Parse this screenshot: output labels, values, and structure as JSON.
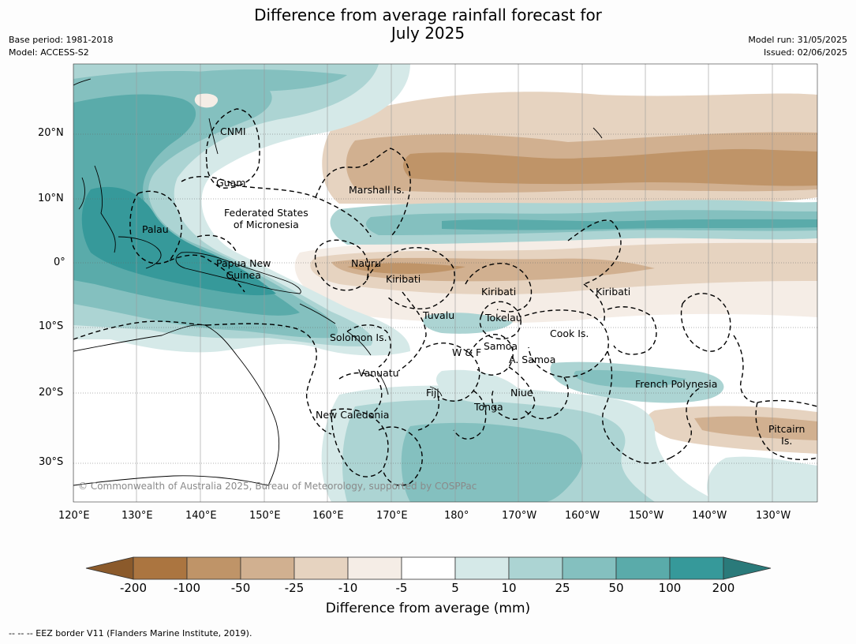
{
  "title_line1": "Difference from average rainfall forecast for",
  "title_line2": "July 2025",
  "meta_left": {
    "base_period": "Base period: 1981-2018",
    "model": "Model: ACCESS-S2"
  },
  "meta_right": {
    "model_run": "Model run: 31/05/2025",
    "issued": "Issued: 02/06/2025"
  },
  "lon_ticks": [
    "120°E",
    "130°E",
    "140°E",
    "150°E",
    "160°E",
    "170°E",
    "180°",
    "170°W",
    "160°W",
    "150°W",
    "140°W",
    "130°W"
  ],
  "lat_ticks": [
    "20°N",
    "10°N",
    "0°",
    "10°S",
    "20°S",
    "30°S"
  ],
  "places": [
    {
      "name": "CNMI"
    },
    {
      "name": "Guam"
    },
    {
      "name": "Marshall Is."
    },
    {
      "name": "Federated States\nof Micronesia"
    },
    {
      "name": "Palau"
    },
    {
      "name": "Papua New\nGuinea"
    },
    {
      "name": "Nauru"
    },
    {
      "name": "Kiribati"
    },
    {
      "name": "Kiribati"
    },
    {
      "name": "Kiribati"
    },
    {
      "name": "Tuvalu"
    },
    {
      "name": "Tokelau"
    },
    {
      "name": "Solomon Is."
    },
    {
      "name": "Cook Is."
    },
    {
      "name": "W & F"
    },
    {
      "name": "Samoa"
    },
    {
      "name": "A. Samoa"
    },
    {
      "name": "Vanuatu"
    },
    {
      "name": "Fiji"
    },
    {
      "name": "Niue"
    },
    {
      "name": "French Polynesia"
    },
    {
      "name": "Tonga"
    },
    {
      "name": "New Caledonia"
    },
    {
      "name": "Pitcairn\nIs."
    }
  ],
  "copyright": "© Commonwealth of Australia 2025, Bureau of Meteorology, supported by COSPPac",
  "colorbar": {
    "labels": [
      "-200",
      "-100",
      "-50",
      "-25",
      "-10",
      "-5",
      "5",
      "10",
      "25",
      "50",
      "100",
      "200"
    ],
    "colors": [
      "#8b5a2b",
      "#ab7540",
      "#bf9468",
      "#d1b090",
      "#e6d3c0",
      "#f5ede6",
      "#ffffff",
      "#d5e9e8",
      "#acd4d3",
      "#84c0bf",
      "#5aabaa",
      "#36999a",
      "#2a7a7a"
    ],
    "title": "Difference from average (mm)"
  },
  "footnote": "--  --  -- EEZ border V11 (Flanders Marine Institute, 2019)."
}
